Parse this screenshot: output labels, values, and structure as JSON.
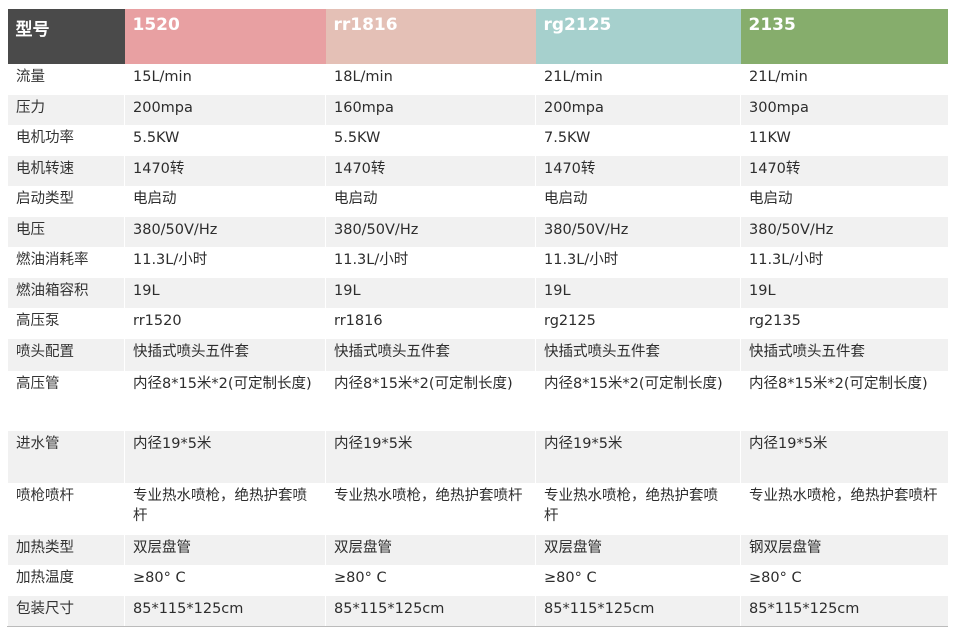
{
  "header": {
    "label": "型号",
    "models": [
      "1520",
      "rr1816",
      "rg2125",
      "2135"
    ],
    "colors": [
      "#4a4a4a",
      "#e8a0a2",
      "#e4c0b6",
      "#a6d0cd",
      "#86ad6c"
    ]
  },
  "rows": [
    {
      "label": "流量",
      "values": [
        "15L/min",
        "18L/min",
        "21L/min",
        "21L/min"
      ]
    },
    {
      "label": "压力",
      "values": [
        "200mpa",
        "160mpa",
        "200mpa",
        "300mpa"
      ]
    },
    {
      "label": "电机功率",
      "values": [
        "5.5KW",
        "5.5KW",
        "7.5KW",
        "11KW"
      ]
    },
    {
      "label": "电机转速",
      "values": [
        "1470转",
        "1470转",
        "1470转",
        "1470转"
      ]
    },
    {
      "label": "启动类型",
      "values": [
        "电启动",
        "电启动",
        "电启动",
        "电启动"
      ]
    },
    {
      "label": "电压",
      "values": [
        "380/50V/Hz",
        "380/50V/Hz",
        "380/50V/Hz",
        "380/50V/Hz"
      ]
    },
    {
      "label": "燃油消耗率",
      "values": [
        "11.3L/小时",
        "11.3L/小时",
        "11.3L/小时",
        "11.3L/小时"
      ]
    },
    {
      "label": "燃油箱容积",
      "values": [
        "19L",
        "19L",
        "19L",
        "19L"
      ]
    },
    {
      "label": "高压泵",
      "values": [
        "rr1520",
        "rr1816",
        "rg2125",
        "rg2135"
      ]
    },
    {
      "label": "喷头配置",
      "values": [
        "快插式喷头五件套",
        "快插式喷头五件套",
        "快插式喷头五件套",
        "快插式喷头五件套"
      ]
    },
    {
      "label": "高压管",
      "values": [
        "内径8*15米*2(可定制长度)",
        "内径8*15米*2(可定制长度)",
        "内径8*15米*2(可定制长度)",
        "内径8*15米*2(可定制长度)"
      ]
    },
    {
      "label": "进水管",
      "values": [
        "内径19*5米",
        "内径19*5米",
        "内径19*5米",
        "内径19*5米"
      ]
    },
    {
      "label": "喷枪喷杆",
      "values": [
        "专业热水喷枪，绝热护套喷杆",
        "专业热水喷枪，绝热护套喷杆",
        "专业热水喷枪，绝热护套喷杆",
        "专业热水喷枪，绝热护套喷杆"
      ]
    },
    {
      "label": "加热类型",
      "values": [
        "双层盘管",
        "双层盘管",
        "双层盘管",
        "钢双层盘管"
      ]
    },
    {
      "label": "加热温度",
      "values": [
        "≥80° C",
        "≥80° C",
        "≥80° C",
        "≥80° C"
      ]
    },
    {
      "label": "包装尺寸",
      "values": [
        "85*115*125cm",
        "85*115*125cm",
        "85*115*125cm",
        "85*115*125cm"
      ]
    }
  ]
}
